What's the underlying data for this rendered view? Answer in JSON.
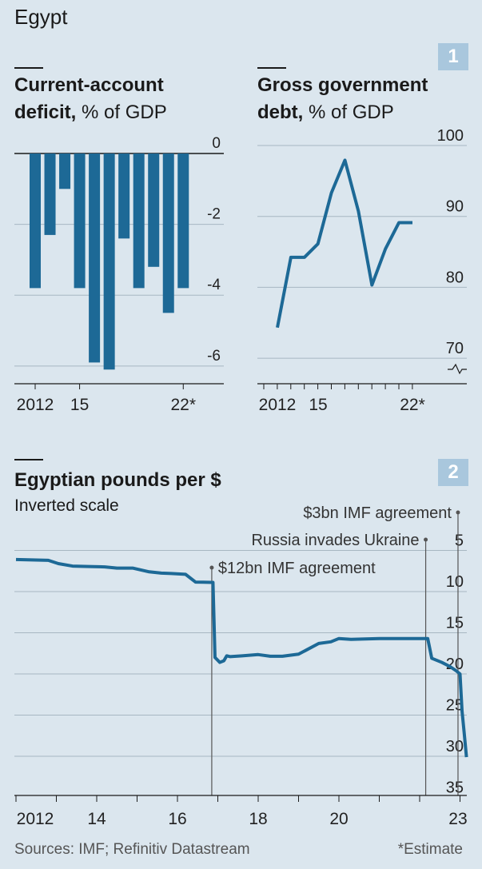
{
  "header": {
    "country": "Egypt"
  },
  "chart_data": [
    {
      "type": "bar",
      "badge": "1",
      "title": "Current-account deficit,",
      "unit": "% of GDP",
      "categories": [
        "2012",
        "2013",
        "2014",
        "2015",
        "2016",
        "2017",
        "2018",
        "2019",
        "2020",
        "2021",
        "2022*"
      ],
      "values": [
        -3.8,
        -2.3,
        -1.0,
        -3.8,
        -5.9,
        -6.1,
        -2.4,
        -3.8,
        -3.2,
        -4.5,
        -3.8
      ],
      "x_tick_labels": [
        "2012",
        "15",
        "22*"
      ],
      "y_ticks": [
        "0",
        "-2",
        "-4",
        "-6"
      ],
      "ylim": [
        -6.5,
        0
      ],
      "color": "#1d6996"
    },
    {
      "type": "line",
      "title": "Gross government debt,",
      "unit": "% of GDP",
      "x": [
        2012,
        2013,
        2014,
        2015,
        2016,
        2017,
        2018,
        2019,
        2020,
        2021,
        2022
      ],
      "values": [
        74.1,
        84.0,
        84.0,
        85.9,
        93.1,
        97.7,
        90.5,
        80.1,
        85.2,
        88.9,
        88.9
      ],
      "x_tick_labels": [
        "2012",
        "15",
        "22*"
      ],
      "y_ticks": [
        "100",
        "90",
        "80",
        "70"
      ],
      "ylim": [
        66,
        100
      ],
      "axis_break": true,
      "color": "#1d6996"
    },
    {
      "type": "line",
      "badge": "2",
      "title": "Egyptian pounds per $",
      "subtitle": "Inverted scale",
      "x": [
        2012.0,
        2012.4,
        2012.8,
        2013.05,
        2013.4,
        2013.8,
        2014.2,
        2014.5,
        2014.9,
        2015.3,
        2015.6,
        2015.85,
        2016.2,
        2016.45,
        2016.85,
        2016.88,
        2016.93,
        2017.05,
        2017.15,
        2017.22,
        2017.3,
        2017.6,
        2018.0,
        2018.3,
        2018.6,
        2019.0,
        2019.5,
        2019.8,
        2020.0,
        2020.3,
        2021.0,
        2022.2,
        2022.3,
        2022.55,
        2022.75,
        2022.9,
        2023.0,
        2023.05,
        2023.1,
        2023.16
      ],
      "values": [
        6.1,
        6.15,
        6.2,
        6.6,
        6.9,
        6.95,
        7.0,
        7.15,
        7.15,
        7.6,
        7.75,
        7.8,
        7.9,
        8.85,
        8.88,
        8.88,
        18.0,
        18.6,
        18.4,
        17.8,
        17.9,
        17.8,
        17.65,
        17.85,
        17.85,
        17.6,
        16.3,
        16.1,
        15.7,
        15.8,
        15.7,
        15.7,
        18.1,
        18.6,
        19.1,
        19.6,
        20.0,
        24.5,
        27.0,
        30.1
      ],
      "x_tick_labels": [
        "2012",
        "14",
        "16",
        "18",
        "20",
        "23"
      ],
      "y_ticks": [
        "5",
        "10",
        "15",
        "20",
        "25",
        "30",
        "35"
      ],
      "ylim": [
        3,
        36
      ],
      "inverted": true,
      "color": "#1d6996",
      "annotations": [
        {
          "x": 2016.85,
          "label": "$12bn IMF agreement"
        },
        {
          "x": 2022.15,
          "label": "Russia invades Ukraine"
        },
        {
          "x": 2022.95,
          "label": "$3bn IMF agreement"
        }
      ]
    }
  ],
  "footer": {
    "sources": "Sources: IMF; Refinitiv Datastream",
    "note": "*Estimate"
  }
}
